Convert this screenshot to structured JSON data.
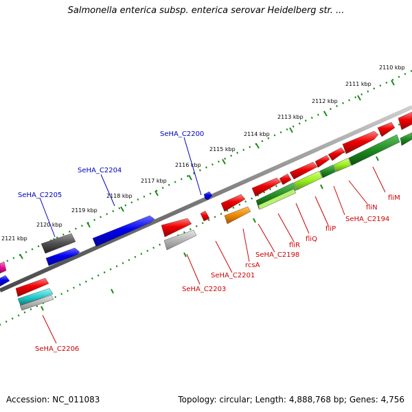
{
  "title": "Salmonella enterica subsp. enterica serovar Heidelberg str. ...",
  "footer": {
    "accession": "Accession: NC_011083",
    "topology": "Topology: circular; Length: 4,888,768 bp; Genes: 4,756"
  },
  "colors": {
    "backbone": "#8a8a8a",
    "tick_dots": "#1a8a1a",
    "forward_label": "#0000bb",
    "reverse_label": "#cc0000"
  },
  "kbp_ticks": [
    "2110 kbp",
    "2111 kbp",
    "2112 kbp",
    "2113 kbp",
    "2114 kbp",
    "2115 kbp",
    "2116 kbp",
    "2117 kbp",
    "2118 kbp",
    "2119 kbp",
    "2120 kbp",
    "2121 kbp"
  ],
  "forward_labels": [
    "SeHA_C2200",
    "SeHA_C2204",
    "SeHA_C2205"
  ],
  "reverse_labels": [
    "fliM",
    "fliN",
    "SeHA_C2194",
    "fliP",
    "fliQ",
    "fliR",
    "SeHA_C2198",
    "rcsA",
    "SeHA_C2201",
    "SeHA_C2203",
    "SeHA_C2206"
  ],
  "feature_colors": {
    "cds_forward": "#0a0aee",
    "cds_reverse": "#ee1111",
    "gray_feature": "#555555",
    "light_gray": "#b0b0b0",
    "orange": "#ee8800",
    "dark_green": "#1f8a1f",
    "light_green": "#99ee22",
    "cyan": "#22cccc",
    "magenta": "#ee1199"
  }
}
